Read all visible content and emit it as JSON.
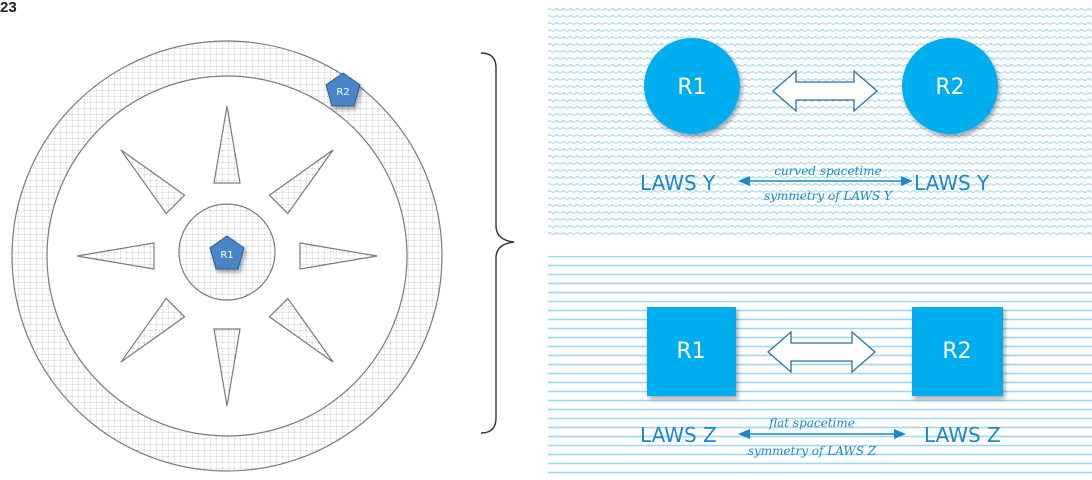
{
  "figure_number": "23",
  "left_diagram": {
    "markers": [
      {
        "label": "R1",
        "icon": "pentagon-icon"
      },
      {
        "label": "R2",
        "icon": "pentagon-icon"
      }
    ]
  },
  "panels": [
    {
      "name": "curved",
      "shape": "circle",
      "pattern": "wavy-lines",
      "node_left": "R1",
      "node_right": "R2",
      "laws_left": "LAWS Y",
      "laws_right": "LAWS Y",
      "caption_top": "curved spacetime",
      "caption_bottom": "symmetry of LAWS Y"
    },
    {
      "name": "flat",
      "shape": "square",
      "pattern": "straight-lines",
      "node_left": "R1",
      "node_right": "R2",
      "laws_left": "LAWS Z",
      "laws_right": "LAWS Z",
      "caption_top": "flat spacetime",
      "caption_bottom": "symmetry of LAWS Z"
    }
  ],
  "colors": {
    "node_fill": "#00aeef",
    "text_blue": "#1e86c8",
    "pattern_line": "#9fd7ef",
    "ring_stroke": "#7a7a7a",
    "marker_fill": "#4a86c8"
  }
}
